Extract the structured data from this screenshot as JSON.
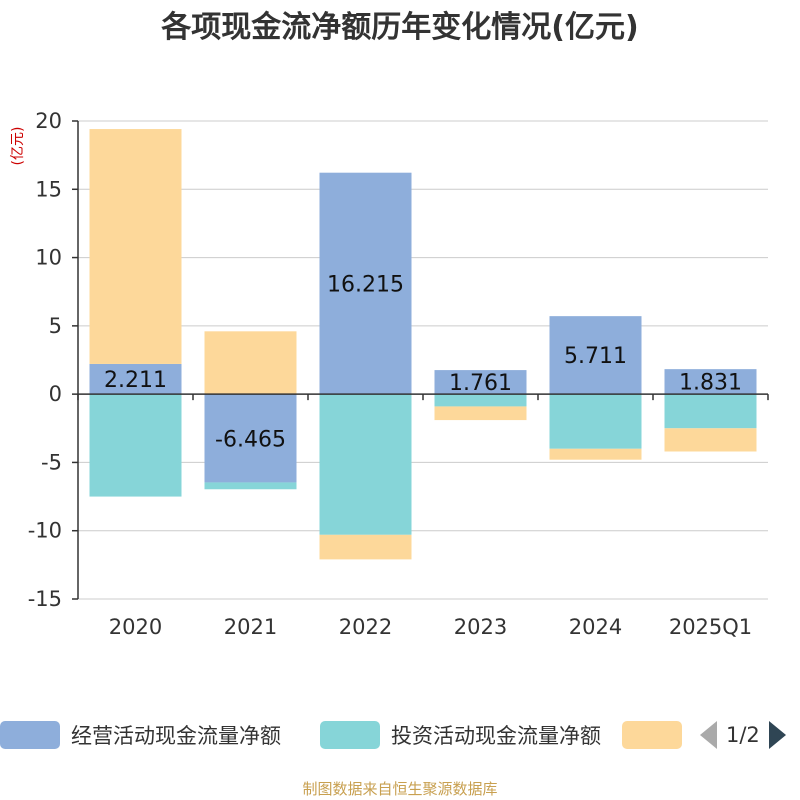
{
  "chart_data": {
    "type": "bar",
    "stacked": true,
    "title": "各项现金流净额历年变化情况(亿元)",
    "ylabel": "(亿元)",
    "categories": [
      "2020",
      "2021",
      "2022",
      "2023",
      "2024",
      "2025Q1"
    ],
    "ylim": [
      -15,
      20
    ],
    "yticks": [
      20,
      15,
      10,
      5,
      0,
      -5,
      -10,
      -15
    ],
    "grid": true,
    "legend_position": "bottom",
    "series": [
      {
        "name": "经营活动现金流量净额",
        "color": "#8eaedb",
        "values": [
          2.211,
          -6.465,
          16.215,
          1.761,
          5.711,
          1.831
        ]
      },
      {
        "name": "投资活动现金流量净额",
        "color": "#86d5d8",
        "values": [
          -7.5,
          -0.5,
          -10.3,
          -0.9,
          -4.0,
          -2.5
        ]
      },
      {
        "name": "",
        "color": "#fdd89a",
        "values": [
          17.2,
          4.6,
          -1.8,
          -1.0,
          -0.8,
          -1.7
        ]
      }
    ],
    "data_labels": [
      "2.211",
      "-6.465",
      "16.215",
      "1.761",
      "5.711",
      "1.831"
    ]
  },
  "legend": {
    "page": "1/2"
  },
  "footer": {
    "source": "制图数据来自恒生聚源数据库"
  }
}
